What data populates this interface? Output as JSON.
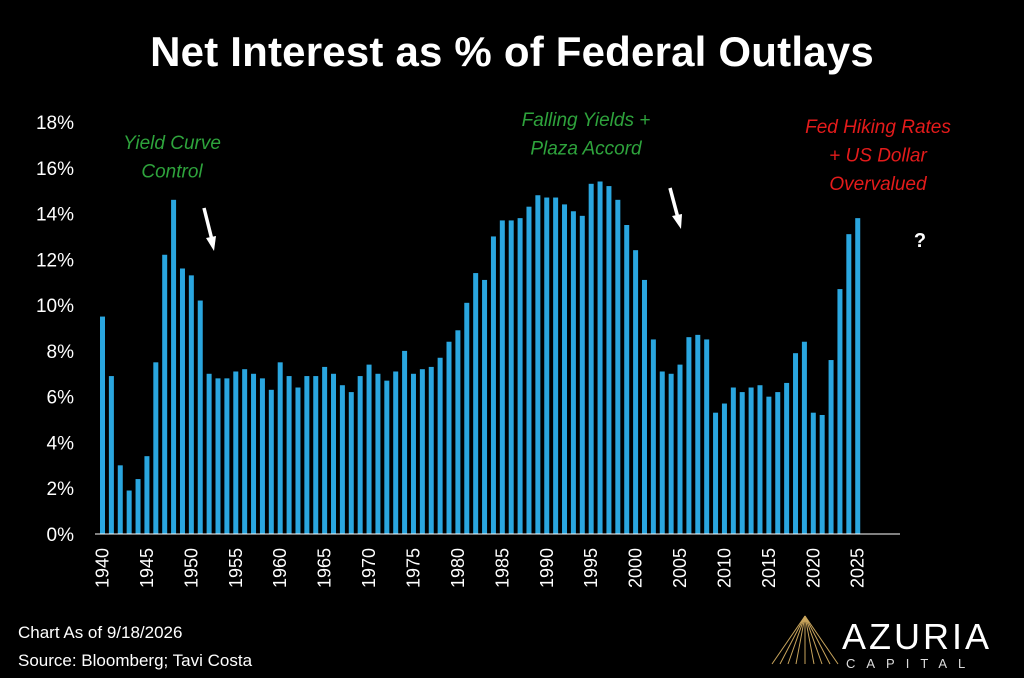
{
  "chart_data": {
    "type": "bar",
    "title": "Net Interest as % of Federal Outlays",
    "xlabel": "",
    "ylabel": "",
    "ylim": [
      0,
      18
    ],
    "y_ticks": [
      "0%",
      "2%",
      "4%",
      "6%",
      "8%",
      "10%",
      "12%",
      "14%",
      "16%",
      "18%"
    ],
    "x_ticks": [
      "1940",
      "1945",
      "1950",
      "1955",
      "1960",
      "1965",
      "1970",
      "1975",
      "1980",
      "1985",
      "1990",
      "1995",
      "2000",
      "2005",
      "2010",
      "2015",
      "2020",
      "2025"
    ],
    "grid": false,
    "bar_color": "#2aa6df",
    "categories": [
      1940,
      1941,
      1942,
      1943,
      1944,
      1945,
      1946,
      1947,
      1948,
      1949,
      1950,
      1951,
      1952,
      1953,
      1954,
      1955,
      1956,
      1957,
      1958,
      1959,
      1960,
      1961,
      1962,
      1963,
      1964,
      1965,
      1966,
      1967,
      1968,
      1969,
      1970,
      1971,
      1972,
      1973,
      1974,
      1975,
      1976,
      1977,
      1978,
      1979,
      1980,
      1981,
      1982,
      1983,
      1984,
      1985,
      1986,
      1987,
      1988,
      1989,
      1990,
      1991,
      1992,
      1993,
      1994,
      1995,
      1996,
      1997,
      1998,
      1999,
      2000,
      2001,
      2002,
      2003,
      2004,
      2005,
      2006,
      2007,
      2008,
      2009,
      2010,
      2011,
      2012,
      2013,
      2014,
      2015,
      2016,
      2017,
      2018,
      2019,
      2020,
      2021,
      2022,
      2023,
      2024,
      2025
    ],
    "values": [
      9.5,
      6.9,
      3.0,
      1.9,
      2.4,
      3.4,
      7.5,
      12.2,
      14.6,
      11.6,
      11.3,
      10.2,
      7.0,
      6.8,
      6.8,
      7.1,
      7.2,
      7.0,
      6.8,
      6.3,
      7.5,
      6.9,
      6.4,
      6.9,
      6.9,
      7.3,
      7.0,
      6.5,
      6.2,
      6.9,
      7.4,
      7.0,
      6.7,
      7.1,
      8.0,
      7.0,
      7.2,
      7.3,
      7.7,
      8.4,
      8.9,
      10.1,
      11.4,
      11.1,
      13.0,
      13.7,
      13.7,
      13.8,
      14.3,
      14.8,
      14.7,
      14.7,
      14.4,
      14.1,
      13.9,
      15.3,
      15.4,
      15.2,
      14.6,
      13.5,
      12.4,
      11.1,
      8.5,
      7.1,
      7.0,
      7.4,
      8.6,
      8.7,
      8.5,
      5.3,
      5.7,
      6.4,
      6.2,
      6.4,
      6.5,
      6.0,
      6.2,
      6.6,
      7.9,
      8.4,
      5.3,
      5.2,
      7.6,
      10.7,
      13.1,
      13.8
    ],
    "annotations": [
      {
        "lines": [
          "Yield Curve",
          "Control"
        ],
        "color": "#2ea33c"
      },
      {
        "lines": [
          "Falling Yields +",
          "Plaza Accord"
        ],
        "color": "#2ea33c"
      },
      {
        "lines": [
          "Fed Hiking Rates",
          "+ US Dollar",
          "Overvalued"
        ],
        "color": "#e41b1b"
      },
      {
        "lines": [
          "?"
        ],
        "color": "#ffffff"
      }
    ]
  },
  "footer": {
    "chart_date": "Chart As of 9/18/2026",
    "source": "Source: Bloomberg; Tavi Costa"
  },
  "logo": {
    "name": "AZURIA",
    "sub": "CAPITAL"
  }
}
